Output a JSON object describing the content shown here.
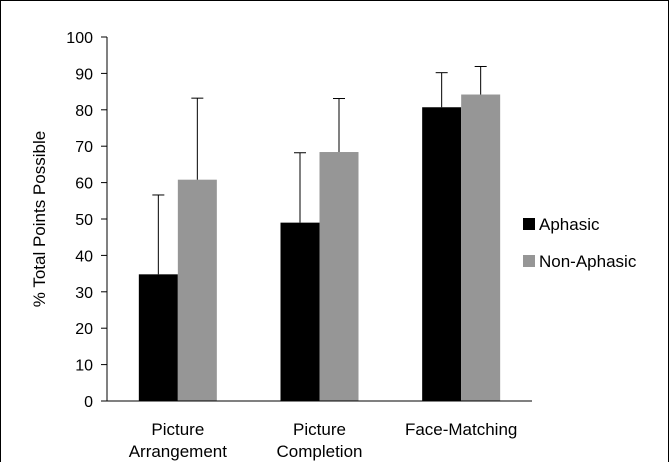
{
  "chart_data": {
    "type": "bar",
    "title": "",
    "xlabel": "",
    "ylabel": "% Total Points Possible",
    "ylim": [
      0,
      100
    ],
    "yticks": [
      0,
      10,
      20,
      30,
      40,
      50,
      60,
      70,
      80,
      90,
      100
    ],
    "grid": false,
    "legend_position": "right",
    "categories": [
      [
        "Picture",
        "Arrangement"
      ],
      [
        "Picture",
        "Completion"
      ],
      [
        "Face-Matching"
      ]
    ],
    "series": [
      {
        "name": "Aphasic",
        "color": "#000000",
        "values": [
          34.8,
          49.0,
          80.7
        ],
        "error": [
          21.8,
          19.2,
          9.5
        ]
      },
      {
        "name": "Non-Aphasic",
        "color": "#969696",
        "values": [
          60.8,
          68.4,
          84.2
        ],
        "error": [
          22.4,
          14.7,
          7.7
        ]
      }
    ],
    "error_bars": "upper"
  }
}
